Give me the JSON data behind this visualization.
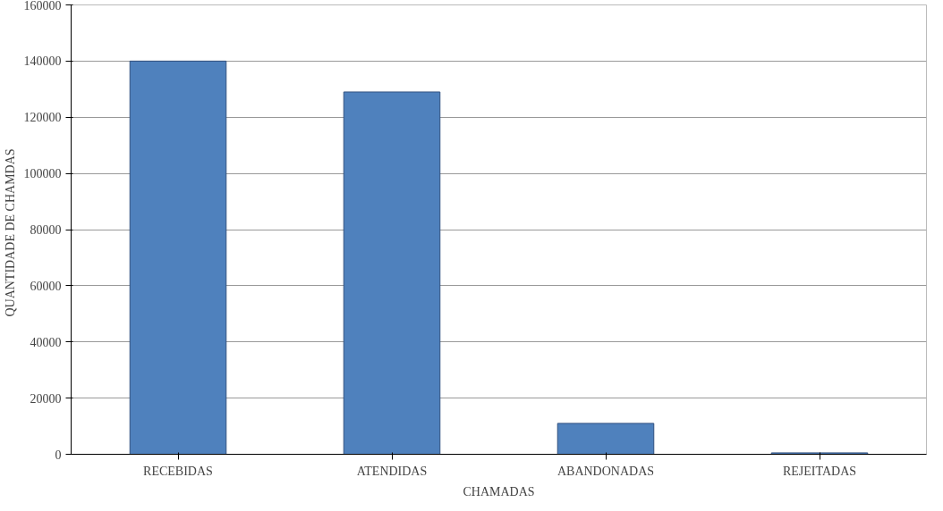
{
  "chart_data": {
    "type": "bar",
    "xlabel": "CHAMADAS",
    "ylabel": "QUANTIDADE  DE  CHAMDAS",
    "categories": [
      "RECEBIDAS",
      "ATENDIDAS",
      "ABANDONADAS",
      "REJEITADAS"
    ],
    "values": [
      140000,
      129000,
      11000,
      500
    ],
    "color": "#4f81bd",
    "ylim": [
      0,
      160000
    ],
    "yticks": [
      0,
      20000,
      40000,
      60000,
      80000,
      100000,
      120000,
      140000,
      160000
    ],
    "grid": "y"
  }
}
